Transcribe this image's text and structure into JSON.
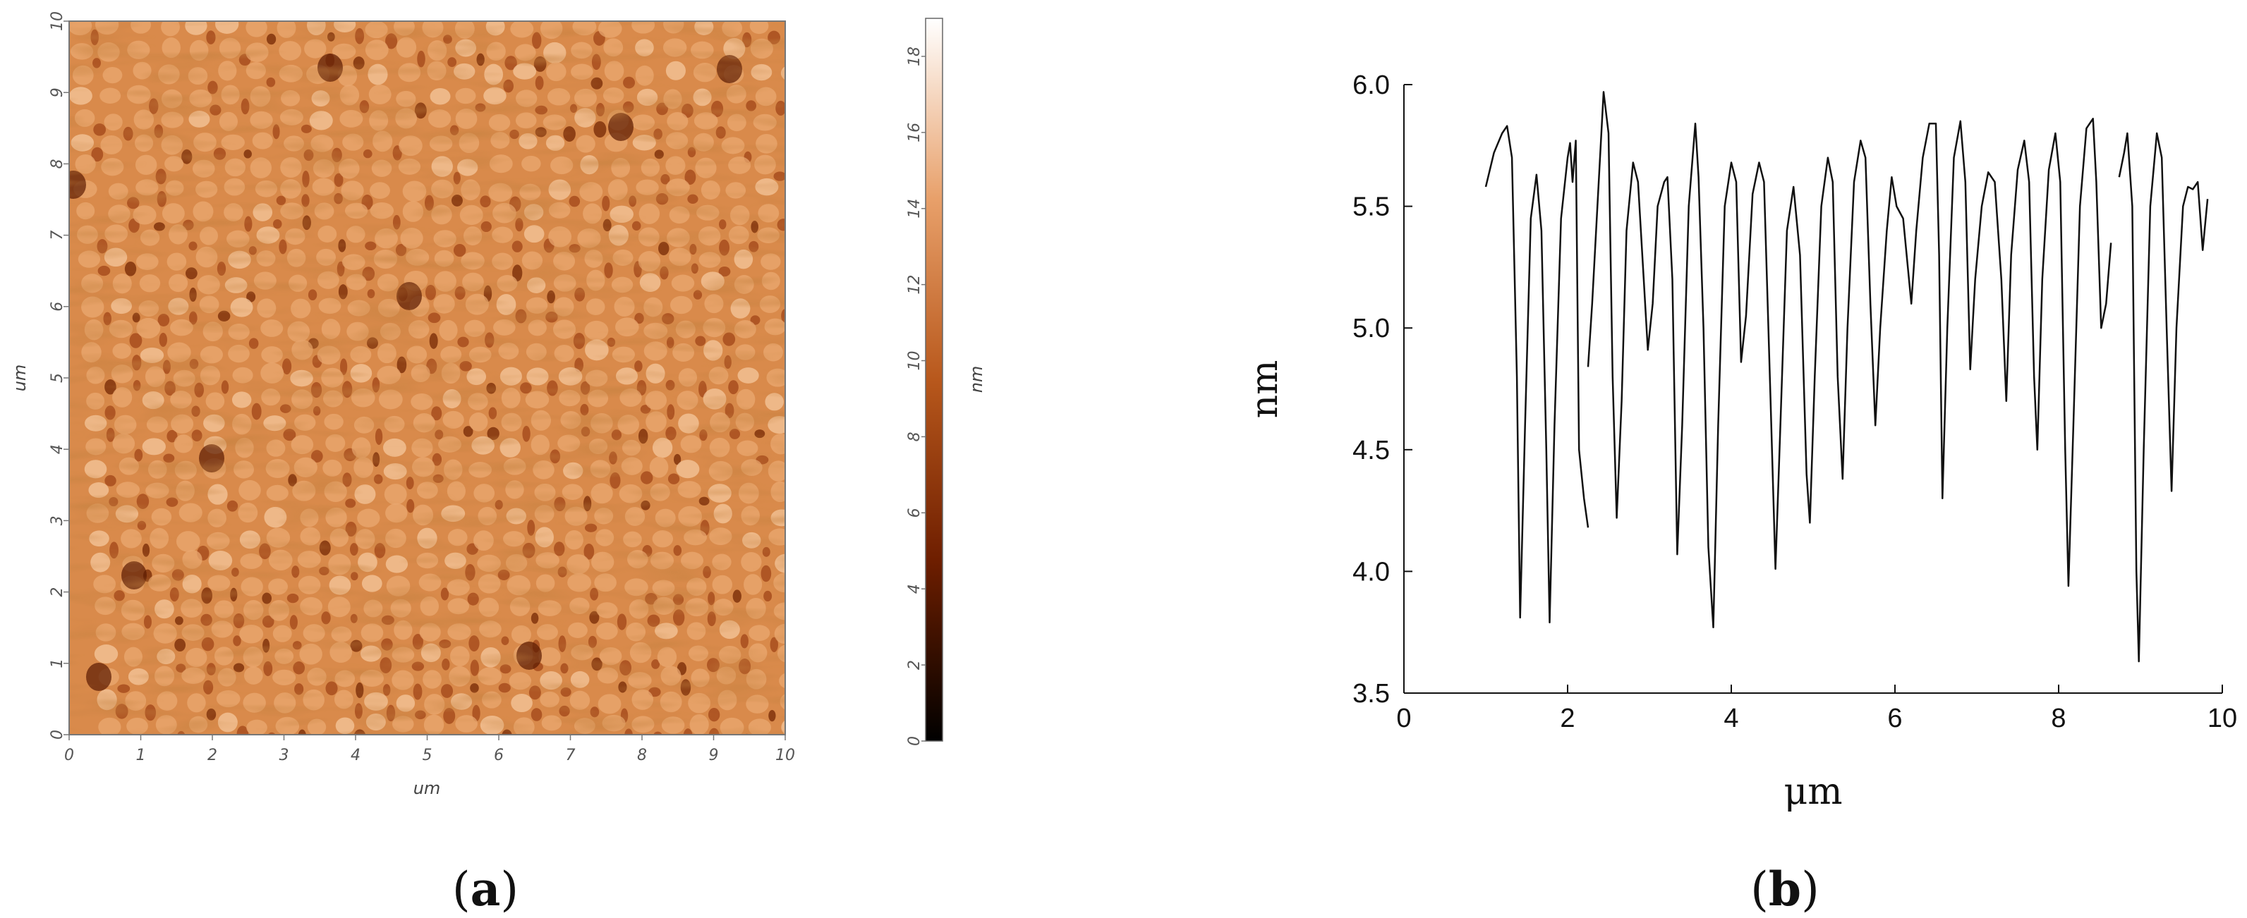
{
  "chart_data": [
    {
      "type": "heatmap",
      "panel_label": "a",
      "xlabel": "um",
      "ylabel": "um",
      "xlim": [
        0,
        10
      ],
      "ylim": [
        0,
        10
      ],
      "x_ticks": [
        "0",
        "1",
        "2",
        "3",
        "4",
        "5",
        "6",
        "7",
        "8",
        "9",
        "10"
      ],
      "y_ticks": [
        "0",
        "1",
        "2",
        "3",
        "4",
        "5",
        "6",
        "7",
        "8",
        "9",
        "10"
      ],
      "colorbar": {
        "label": "nm",
        "range": [
          0,
          19
        ],
        "ticks": [
          "0",
          "2",
          "4",
          "6",
          "8",
          "10",
          "12",
          "14",
          "16",
          "18"
        ],
        "colors": [
          "#000000",
          "#6e1e00",
          "#b8581c",
          "#e8a06a",
          "#ffffff"
        ]
      },
      "surface": "AFM topography: periodic array of bright mounds in near-vertical columns spaced about 0.5 um apart, with dark pits between them"
    },
    {
      "type": "line",
      "panel_label": "b",
      "xlabel": "μm",
      "ylabel": "nm",
      "xlim": [
        0,
        10
      ],
      "ylim": [
        3.5,
        6.0
      ],
      "x_ticks": [
        "0",
        "2",
        "4",
        "6",
        "8",
        "10"
      ],
      "y_ticks": [
        "3.5",
        "4.0",
        "4.5",
        "5.0",
        "5.5",
        "6.0"
      ],
      "series": [
        {
          "segments": [
            [
              [
                1.0,
                5.58
              ],
              [
                1.1,
                5.72
              ],
              [
                1.2,
                5.8
              ],
              [
                1.26,
                5.83
              ],
              [
                1.32,
                5.7
              ],
              [
                1.38,
                4.8
              ],
              [
                1.42,
                3.81
              ],
              [
                1.48,
                4.6
              ],
              [
                1.55,
                5.45
              ],
              [
                1.62,
                5.63
              ],
              [
                1.68,
                5.4
              ],
              [
                1.74,
                4.5
              ],
              [
                1.78,
                3.79
              ],
              [
                1.84,
                4.6
              ],
              [
                1.92,
                5.45
              ],
              [
                2.0,
                5.7
              ],
              [
                2.03,
                5.76
              ],
              [
                2.06,
                5.6
              ],
              [
                2.1,
                5.77
              ],
              [
                2.14,
                4.5
              ],
              [
                2.2,
                4.3
              ],
              [
                2.25,
                4.18
              ]
            ],
            [
              [
                2.25,
                4.84
              ],
              [
                2.3,
                5.1
              ],
              [
                2.38,
                5.6
              ],
              [
                2.44,
                5.97
              ],
              [
                2.5,
                5.8
              ],
              [
                2.55,
                4.8
              ],
              [
                2.6,
                4.22
              ],
              [
                2.66,
                4.7
              ],
              [
                2.72,
                5.4
              ],
              [
                2.8,
                5.68
              ],
              [
                2.86,
                5.6
              ],
              [
                2.93,
                5.2
              ],
              [
                2.98,
                4.91
              ],
              [
                3.04,
                5.1
              ],
              [
                3.1,
                5.5
              ],
              [
                3.18,
                5.6
              ],
              [
                3.22,
                5.62
              ],
              [
                3.28,
                5.2
              ],
              [
                3.34,
                4.07
              ],
              [
                3.4,
                4.6
              ],
              [
                3.48,
                5.5
              ],
              [
                3.56,
                5.84
              ],
              [
                3.6,
                5.62
              ],
              [
                3.66,
                5.0
              ],
              [
                3.72,
                4.1
              ],
              [
                3.78,
                3.77
              ],
              [
                3.84,
                4.6
              ],
              [
                3.92,
                5.5
              ],
              [
                4.0,
                5.68
              ],
              [
                4.06,
                5.6
              ],
              [
                4.12,
                4.86
              ],
              [
                4.18,
                5.05
              ],
              [
                4.26,
                5.55
              ],
              [
                4.34,
                5.68
              ],
              [
                4.4,
                5.6
              ],
              [
                4.48,
                4.7
              ],
              [
                4.54,
                4.01
              ],
              [
                4.6,
                4.6
              ],
              [
                4.68,
                5.4
              ],
              [
                4.76,
                5.58
              ],
              [
                4.84,
                5.3
              ],
              [
                4.92,
                4.4
              ],
              [
                4.96,
                4.2
              ],
              [
                5.02,
                4.8
              ],
              [
                5.1,
                5.5
              ],
              [
                5.18,
                5.7
              ],
              [
                5.24,
                5.6
              ],
              [
                5.3,
                4.8
              ],
              [
                5.36,
                4.38
              ],
              [
                5.42,
                5.0
              ],
              [
                5.5,
                5.6
              ],
              [
                5.58,
                5.77
              ],
              [
                5.64,
                5.7
              ],
              [
                5.7,
                5.1
              ],
              [
                5.76,
                4.6
              ],
              [
                5.82,
                5.0
              ],
              [
                5.9,
                5.4
              ],
              [
                5.96,
                5.62
              ],
              [
                6.02,
                5.5
              ],
              [
                6.1,
                5.45
              ],
              [
                6.2,
                5.1
              ],
              [
                6.26,
                5.4
              ],
              [
                6.34,
                5.7
              ],
              [
                6.42,
                5.84
              ],
              [
                6.5,
                5.84
              ],
              [
                6.54,
                5.3
              ],
              [
                6.58,
                4.3
              ],
              [
                6.64,
                5.0
              ],
              [
                6.72,
                5.7
              ],
              [
                6.8,
                5.85
              ],
              [
                6.86,
                5.6
              ],
              [
                6.92,
                4.83
              ],
              [
                6.98,
                5.2
              ],
              [
                7.06,
                5.5
              ],
              [
                7.14,
                5.64
              ],
              [
                7.22,
                5.6
              ],
              [
                7.3,
                5.2
              ],
              [
                7.36,
                4.7
              ],
              [
                7.42,
                5.3
              ],
              [
                7.5,
                5.65
              ],
              [
                7.58,
                5.77
              ],
              [
                7.64,
                5.6
              ],
              [
                7.7,
                4.8
              ],
              [
                7.74,
                4.5
              ],
              [
                7.8,
                5.2
              ],
              [
                7.88,
                5.65
              ],
              [
                7.96,
                5.8
              ],
              [
                8.02,
                5.6
              ],
              [
                8.08,
                4.5
              ],
              [
                8.12,
                3.94
              ],
              [
                8.18,
                4.6
              ],
              [
                8.26,
                5.5
              ],
              [
                8.34,
                5.82
              ],
              [
                8.42,
                5.86
              ],
              [
                8.46,
                5.6
              ],
              [
                8.52,
                5.0
              ],
              [
                8.58,
                5.1
              ],
              [
                8.64,
                5.35
              ]
            ],
            [
              [
                8.74,
                5.62
              ],
              [
                8.8,
                5.72
              ],
              [
                8.84,
                5.8
              ],
              [
                8.9,
                5.5
              ],
              [
                8.95,
                4.0
              ],
              [
                8.98,
                3.63
              ],
              [
                9.04,
                4.5
              ],
              [
                9.12,
                5.5
              ],
              [
                9.2,
                5.8
              ],
              [
                9.26,
                5.7
              ],
              [
                9.32,
                5.0
              ],
              [
                9.38,
                4.33
              ],
              [
                9.44,
                5.0
              ],
              [
                9.52,
                5.5
              ],
              [
                9.58,
                5.58
              ],
              [
                9.64,
                5.57
              ],
              [
                9.7,
                5.6
              ],
              [
                9.76,
                5.32
              ],
              [
                9.82,
                5.53
              ]
            ]
          ]
        }
      ]
    }
  ]
}
